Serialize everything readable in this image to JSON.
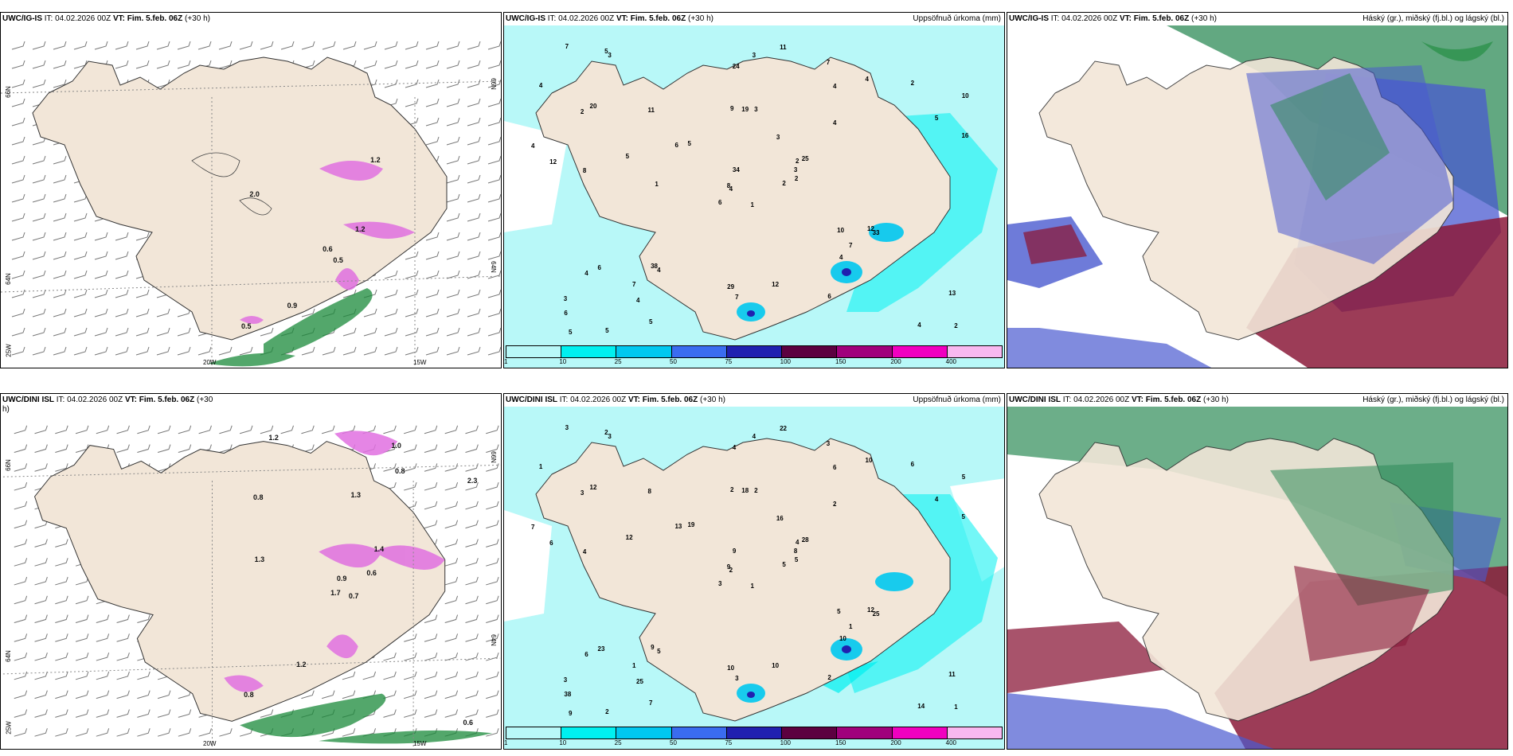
{
  "panels": {
    "p1": {
      "model": "UWC/IG-IS",
      "it": "IT: 04.02.2026 00Z",
      "vt": "VT: Fim. 5.feb. 06Z",
      "lead": "(+30 h)",
      "product": "",
      "lat_labels": [
        "66N",
        "64N",
        "25W"
      ],
      "lon_labels": [
        "20W",
        "15W"
      ],
      "lat_right": [
        "66N",
        "64N"
      ],
      "values": [
        "0.5",
        "2.0",
        "0.6",
        "0.5",
        "1.2",
        "0.9",
        "1.2"
      ]
    },
    "p2": {
      "model": "UWC/IG-IS",
      "it": "IT: 04.02.2026 00Z",
      "vt": "VT: Fim. 5.feb. 06Z",
      "lead": "(+30 h)",
      "product": "Uppsöfnuð úrkoma (mm)",
      "values": [
        "1",
        "2",
        "4",
        "3",
        "2",
        "4",
        "7",
        "3",
        "4",
        "2",
        "3",
        "2",
        "8",
        "10",
        "6",
        "4",
        "5",
        "9",
        "3",
        "6",
        "5",
        "6",
        "4",
        "19",
        "25",
        "33",
        "20",
        "24",
        "12",
        "10",
        "16",
        "8",
        "29",
        "34",
        "11",
        "4",
        "38",
        "4",
        "13",
        "12",
        "11",
        "6",
        "5",
        "4",
        "5",
        "4",
        "3",
        "5",
        "7",
        "2",
        "4",
        "5",
        "4",
        "7",
        "6",
        "7",
        "5",
        "7",
        "12",
        "2",
        "3",
        "1"
      ]
    },
    "p3": {
      "model": "UWC/IG-IS",
      "it": "IT: 04.02.2026 00Z",
      "vt": "VT: Fim. 5.feb. 06Z",
      "lead": "(+30 h)",
      "product": "Háský (gr.), miðský (fj.bl.) og lágský (bl.)"
    },
    "p4": {
      "model": "UWC/DINI ISL",
      "it": "IT: 04.02.2026 00Z",
      "vt": "VT: Fim. 5.feb. 06Z",
      "lead": "(+30",
      "lead2": "h)",
      "product": "",
      "lat_labels": [
        "66N",
        "64N",
        "25W"
      ],
      "lon_labels": [
        "20W",
        "15W"
      ],
      "lat_right": [
        "66N",
        "64N"
      ],
      "values": [
        "0.7",
        "0.8",
        "0.9",
        "0.8",
        "1.4",
        "1.2",
        "1.0",
        "1.3",
        "0.8",
        "0.6",
        "1.2",
        "0.6",
        "1.3",
        "2.3",
        "1.7"
      ]
    },
    "p5": {
      "model": "UWC/DINI ISL",
      "it": "IT: 04.02.2026 00Z",
      "vt": "VT: Fim. 5.feb. 06Z",
      "lead": "(+30 h)",
      "product": "Uppsöfnuð úrkoma (mm)",
      "values": [
        "1",
        "3",
        "2",
        "3",
        "4",
        "5",
        "3",
        "2",
        "6",
        "5",
        "3",
        "1",
        "4",
        "5",
        "3",
        "2",
        "2",
        "2",
        "16",
        "23",
        "19",
        "38",
        "25",
        "18",
        "28",
        "25",
        "12",
        "4",
        "6",
        "5",
        "5",
        "9",
        "10",
        "9",
        "8",
        "10",
        "9",
        "14",
        "11",
        "12",
        "22",
        "13",
        "12",
        "10",
        "7",
        "7",
        "8",
        "9",
        "3",
        "5",
        "6",
        "4",
        "1",
        "1",
        "2",
        "1",
        "2",
        "3",
        "10",
        "6",
        "4"
      ]
    },
    "p6": {
      "model": "UWC/DINI ISL",
      "it": "IT: 04.02.2026 00Z",
      "vt": "VT: Fim. 5.feb. 06Z",
      "lead": "(+30 h)",
      "product": "Háský (gr.), miðský (fj.bl.) og lágský (bl.)"
    }
  },
  "precip_scale": {
    "ticks": [
      "1",
      "10",
      "25",
      "50",
      "75",
      "100",
      "150",
      "200",
      "400"
    ],
    "colors": [
      "#b8f8f8",
      "#00f0f0",
      "#00c8f0",
      "#3a6cf0",
      "#2020b0",
      "#5c0040",
      "#a0007c",
      "#f000c0",
      "#f8b8f0"
    ]
  },
  "colors": {
    "land": "#f2e6d8",
    "sea": "#ffffff",
    "precip_light": "#b8f8f8",
    "precip_mid": "#00f0f0",
    "snow_pink": "#e070e0",
    "rain_green": "#1a8a3a",
    "high_cloud": "#2e8b57",
    "mid_cloud": "#8b1a3a",
    "low_cloud": "#4a5ad0"
  }
}
